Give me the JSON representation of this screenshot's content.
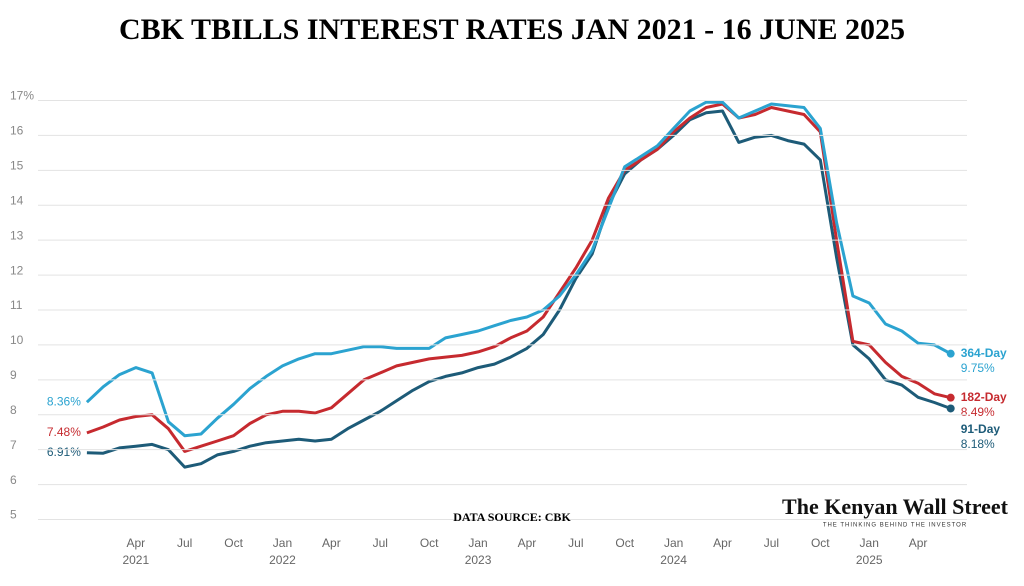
{
  "chart_data": {
    "type": "line",
    "title": "CBK TBILLS INTEREST RATES JAN 2021 - 16 JUNE 2025",
    "source": "DATA SOURCE: CBK",
    "watermark": "The Kenyan Wall Street",
    "watermark_tagline": "THE THINKING BEHIND THE INVESTOR",
    "x": [
      "2021-01",
      "2021-02",
      "2021-03",
      "2021-04",
      "2021-05",
      "2021-06",
      "2021-07",
      "2021-08",
      "2021-09",
      "2021-10",
      "2021-11",
      "2021-12",
      "2022-01",
      "2022-02",
      "2022-03",
      "2022-04",
      "2022-05",
      "2022-06",
      "2022-07",
      "2022-08",
      "2022-09",
      "2022-10",
      "2022-11",
      "2022-12",
      "2023-01",
      "2023-02",
      "2023-03",
      "2023-04",
      "2023-05",
      "2023-06",
      "2023-07",
      "2023-08",
      "2023-09",
      "2023-10",
      "2023-11",
      "2023-12",
      "2024-01",
      "2024-02",
      "2024-03",
      "2024-04",
      "2024-05",
      "2024-06",
      "2024-07",
      "2024-08",
      "2024-09",
      "2024-10",
      "2024-11",
      "2024-12",
      "2025-01",
      "2025-02",
      "2025-03",
      "2025-04",
      "2025-05",
      "2025-06"
    ],
    "xlim": [
      "2020-10",
      "2025-07"
    ],
    "xticks": [
      {
        "value": "2021-04",
        "label": "Apr"
      },
      {
        "value": "2021-07",
        "label": "Jul"
      },
      {
        "value": "2021-10",
        "label": "Oct"
      },
      {
        "value": "2022-01",
        "label": "Jan"
      },
      {
        "value": "2022-04",
        "label": "Apr"
      },
      {
        "value": "2022-07",
        "label": "Jul"
      },
      {
        "value": "2022-10",
        "label": "Oct"
      },
      {
        "value": "2023-01",
        "label": "Jan"
      },
      {
        "value": "2023-04",
        "label": "Apr"
      },
      {
        "value": "2023-07",
        "label": "Jul"
      },
      {
        "value": "2023-10",
        "label": "Oct"
      },
      {
        "value": "2024-01",
        "label": "Jan"
      },
      {
        "value": "2024-04",
        "label": "Apr"
      },
      {
        "value": "2024-07",
        "label": "Jul"
      },
      {
        "value": "2024-10",
        "label": "Oct"
      },
      {
        "value": "2025-01",
        "label": "Jan"
      },
      {
        "value": "2025-04",
        "label": "Apr"
      }
    ],
    "x_year_labels": [
      {
        "value": "2021-04",
        "label": "2021"
      },
      {
        "value": "2022-01",
        "label": "2022"
      },
      {
        "value": "2023-01",
        "label": "2023"
      },
      {
        "value": "2024-01",
        "label": "2024"
      },
      {
        "value": "2025-01",
        "label": "2025"
      }
    ],
    "ylim": [
      4.7,
      17.1
    ],
    "yticks": [
      5,
      6,
      7,
      8,
      9,
      10,
      11,
      12,
      13,
      14,
      15,
      16,
      {
        "value": 17,
        "label": "17%"
      }
    ],
    "grid": true,
    "series": [
      {
        "name": "364-Day",
        "color": "#2ba3d0",
        "values": [
          8.36,
          8.8,
          9.15,
          9.35,
          9.2,
          7.8,
          7.4,
          7.45,
          7.9,
          8.3,
          8.75,
          9.1,
          9.4,
          9.6,
          9.75,
          9.75,
          9.85,
          9.95,
          9.95,
          9.9,
          9.9,
          9.9,
          10.2,
          10.3,
          10.4,
          10.55,
          10.7,
          10.8,
          11.0,
          11.4,
          12.0,
          12.7,
          13.9,
          15.1,
          15.4,
          15.7,
          16.2,
          16.7,
          16.95,
          16.95,
          16.5,
          16.7,
          16.9,
          16.85,
          16.8,
          16.2,
          13.5,
          11.4,
          11.2,
          10.6,
          10.4,
          10.05,
          10.0,
          9.75
        ],
        "value_labels": [
          "8.36%",
          null,
          null,
          null,
          null,
          null,
          null,
          null,
          null,
          null,
          null,
          null,
          null,
          null,
          null,
          null,
          null,
          null,
          null,
          null,
          null,
          null,
          null,
          null,
          null,
          null,
          null,
          null,
          null,
          null,
          null,
          null,
          null,
          null,
          null,
          null,
          null,
          null,
          null,
          null,
          null,
          null,
          null,
          null,
          null,
          null,
          null,
          null,
          null,
          null,
          null,
          null,
          null,
          "9.75%"
        ]
      },
      {
        "name": "182-Day",
        "color": "#c62a2f",
        "values": [
          7.48,
          7.65,
          7.85,
          7.95,
          8.0,
          7.6,
          6.95,
          7.1,
          7.25,
          7.4,
          7.75,
          8.0,
          8.1,
          8.1,
          8.05,
          8.2,
          8.6,
          9.0,
          9.2,
          9.4,
          9.5,
          9.6,
          9.65,
          9.7,
          9.8,
          9.95,
          10.2,
          10.4,
          10.8,
          11.5,
          12.2,
          13.0,
          14.2,
          15.0,
          15.3,
          15.6,
          16.1,
          16.5,
          16.8,
          16.9,
          16.5,
          16.6,
          16.8,
          16.7,
          16.6,
          16.1,
          13.0,
          10.1,
          10.0,
          9.5,
          9.1,
          8.9,
          8.6,
          8.49
        ],
        "value_labels": [
          "7.48%",
          null,
          null,
          null,
          null,
          null,
          null,
          null,
          null,
          null,
          null,
          null,
          null,
          null,
          null,
          null,
          null,
          null,
          null,
          null,
          null,
          null,
          null,
          null,
          null,
          null,
          null,
          null,
          null,
          null,
          null,
          null,
          null,
          null,
          null,
          null,
          null,
          null,
          null,
          null,
          null,
          null,
          null,
          null,
          null,
          null,
          null,
          null,
          null,
          null,
          null,
          null,
          null,
          "8.49%"
        ]
      },
      {
        "name": "91-Day",
        "color": "#1d5b78",
        "values": [
          6.91,
          6.9,
          7.05,
          7.1,
          7.15,
          7.0,
          6.5,
          6.6,
          6.85,
          6.95,
          7.1,
          7.2,
          7.25,
          7.3,
          7.25,
          7.3,
          7.6,
          7.85,
          8.1,
          8.4,
          8.7,
          8.95,
          9.1,
          9.2,
          9.35,
          9.45,
          9.65,
          9.9,
          10.3,
          11.0,
          11.9,
          12.6,
          14.0,
          14.9,
          15.3,
          15.6,
          16.0,
          16.45,
          16.65,
          16.7,
          15.8,
          15.95,
          16.0,
          15.85,
          15.75,
          15.3,
          12.5,
          10.0,
          9.6,
          9.0,
          8.85,
          8.5,
          8.35,
          8.18
        ],
        "value_labels": [
          "6.91%",
          null,
          null,
          null,
          null,
          null,
          null,
          null,
          null,
          null,
          null,
          null,
          null,
          null,
          null,
          null,
          null,
          null,
          null,
          null,
          null,
          null,
          null,
          null,
          null,
          null,
          null,
          null,
          null,
          null,
          null,
          null,
          null,
          null,
          null,
          null,
          null,
          null,
          null,
          null,
          null,
          null,
          null,
          null,
          null,
          null,
          null,
          null,
          null,
          null,
          null,
          null,
          null,
          "8.18%"
        ]
      }
    ]
  }
}
